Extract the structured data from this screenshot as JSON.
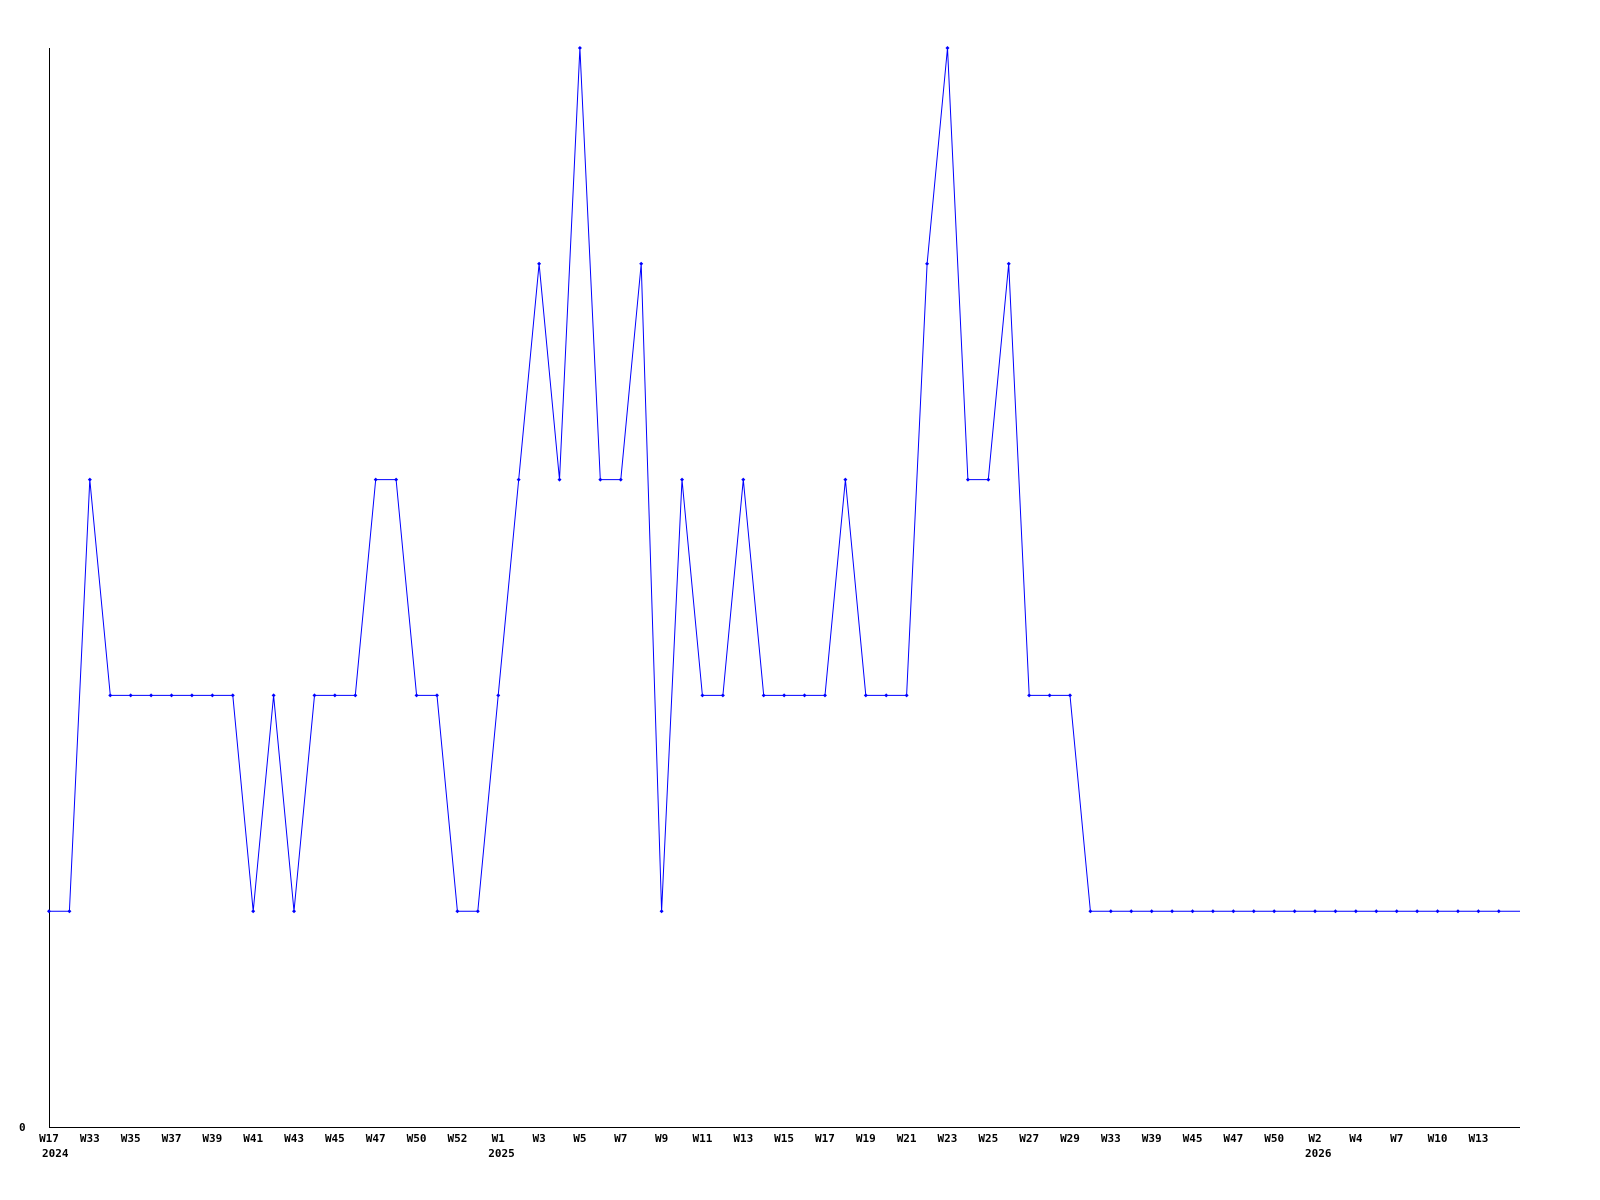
{
  "chart_data": {
    "type": "line",
    "title": "",
    "xlabel": "",
    "ylabel": "",
    "ylim": [
      0,
      5
    ],
    "y_tick_labels": [
      "0"
    ],
    "grid": false,
    "legend": "none",
    "line_color": "#0000ff",
    "x_tick_labels": [
      "W17",
      "W33",
      "W35",
      "W37",
      "W39",
      "W41",
      "W43",
      "W45",
      "W47",
      "W50",
      "W52",
      "W1",
      "W3",
      "W5",
      "W7",
      "W9",
      "W11",
      "W13",
      "W15",
      "W17",
      "W19",
      "W21",
      "W23",
      "W25",
      "W27",
      "W29",
      "W33",
      "W39",
      "W45",
      "W47",
      "W50",
      "W2",
      "W4",
      "W7",
      "W10",
      "W13"
    ],
    "year_labels": [
      {
        "label": "2024",
        "at_tick": 0
      },
      {
        "label": "2025",
        "at_tick": 11
      },
      {
        "label": "2026",
        "at_tick": 31
      }
    ],
    "series": [
      {
        "values": [
          1,
          1,
          3,
          2,
          2,
          2,
          2,
          2,
          2,
          2,
          1,
          2,
          1,
          2,
          2,
          2,
          3,
          3,
          2,
          2,
          1,
          1,
          2,
          3,
          4,
          3,
          5,
          3,
          3,
          4,
          1,
          3,
          2,
          2,
          3,
          2,
          2,
          2,
          2,
          3,
          2,
          2,
          2,
          4,
          5,
          3,
          3,
          4,
          2,
          2,
          2,
          1,
          1,
          1,
          1,
          1,
          1,
          1,
          1,
          1,
          1,
          1,
          1,
          1,
          1,
          1,
          1,
          1,
          1,
          1,
          1,
          1
        ]
      }
    ]
  }
}
